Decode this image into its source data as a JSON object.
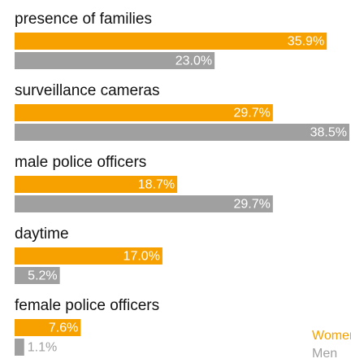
{
  "chart_data": {
    "type": "grouped-hbar",
    "categories": [
      "presence of families",
      "surveillance cameras",
      "male police officers",
      "daytime",
      "female police officers"
    ],
    "series": [
      {
        "name": "Women",
        "color": "#f7a100",
        "values": [
          35.9,
          29.7,
          18.7,
          17.0,
          7.6
        ],
        "value_labels": [
          "35.9%",
          "29.7%",
          "18.7%",
          "17.0%",
          "7.6%"
        ]
      },
      {
        "name": "Men",
        "color": "#a0a0a0",
        "values": [
          23.0,
          38.5,
          29.7,
          5.2,
          1.1
        ],
        "value_labels": [
          "23.0%",
          "38.5%",
          "29.7%",
          "5.2%",
          "1.1%"
        ]
      }
    ],
    "legend": "bottom-right"
  }
}
